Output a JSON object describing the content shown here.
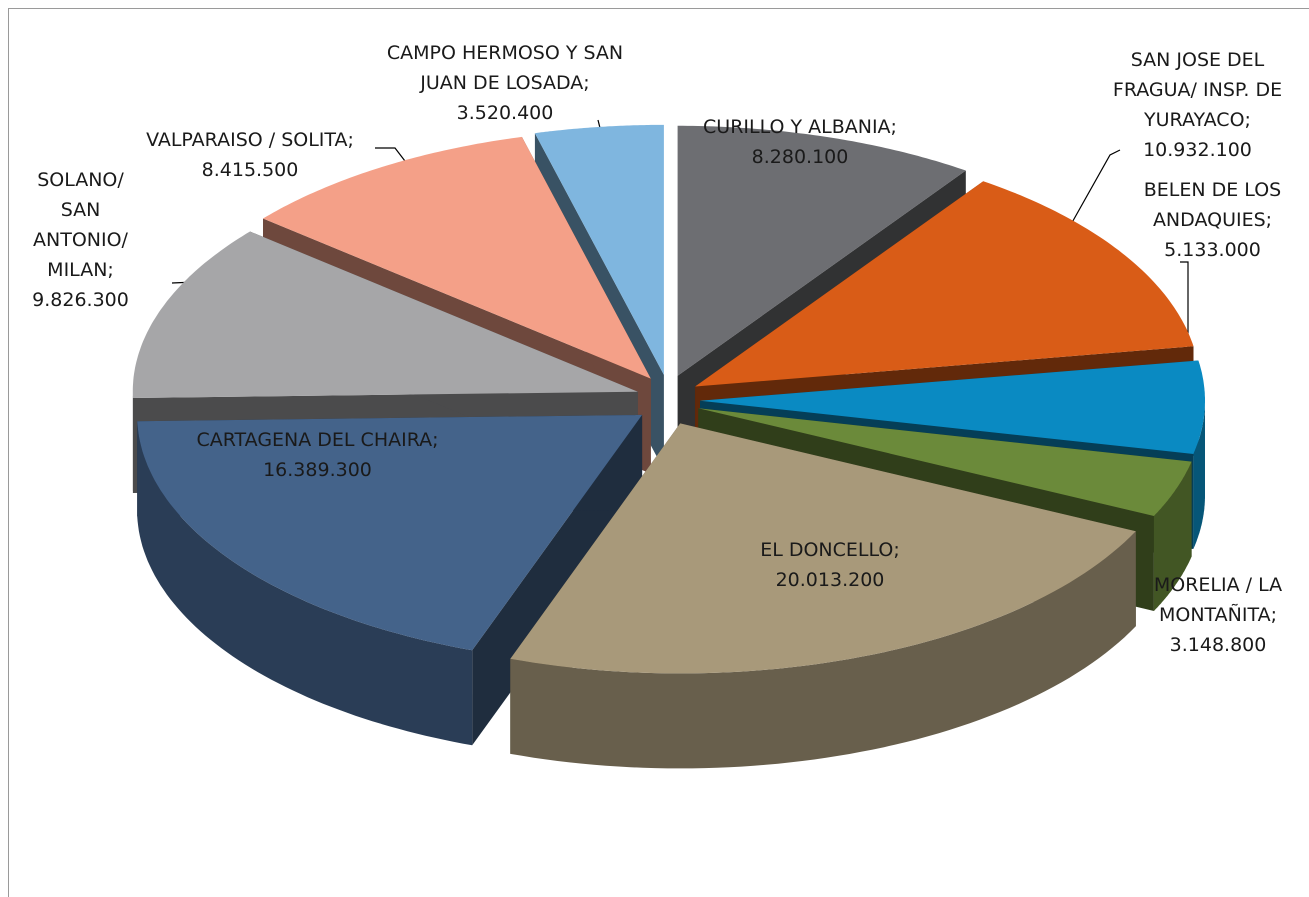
{
  "chart_data": {
    "type": "pie3d",
    "categories": [
      "CURILLO Y ALBANIA;",
      "SAN JOSE DEL FRAGUA/ INSP. DE YURAYACO;",
      "BELEN DE LOS ANDAQUIES;",
      "MORELIA / LA MONTAÑITA;",
      "EL DONCELLO;",
      "CARTAGENA DEL CHAIRA;",
      "SOLANO/ SAN ANTONIO/ MILAN;",
      "VALPARAISO / SOLITA;",
      "CAMPO HERMOSO Y SAN JUAN DE LOSADA;"
    ],
    "values": [
      8280100,
      10932100,
      5133000,
      3148800,
      20013200,
      16389300,
      9826300,
      8415500,
      3520400
    ],
    "value_labels": [
      "8.280.100",
      "10.932.100",
      "5.133.000",
      "3.148.800",
      "20.013.200",
      "16.389.300",
      "9.826.300",
      "8.415.500",
      "3.520.400"
    ],
    "colors": [
      "#6d6e72",
      "#d95c17",
      "#0a8ac2",
      "#6b8a3a",
      "#a8997a",
      "#44638a",
      "#a6a6a8",
      "#f4a088",
      "#7fb6df"
    ]
  }
}
